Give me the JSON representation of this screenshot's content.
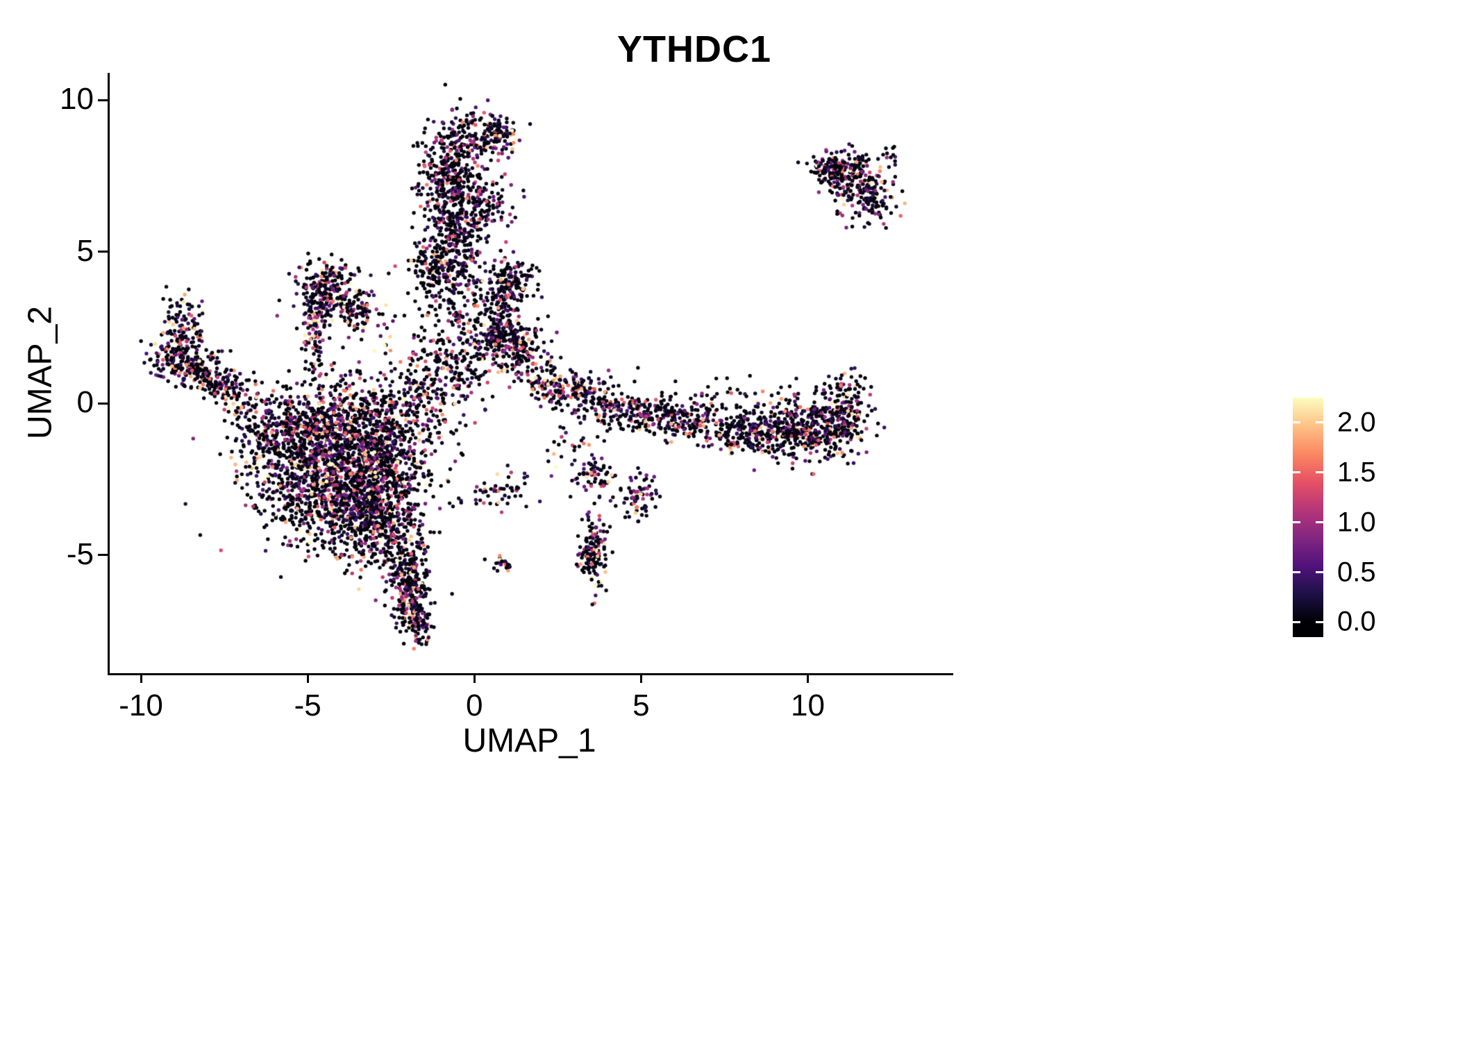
{
  "chart_data": {
    "type": "scatter",
    "title": "YTHDC1",
    "xlabel": "UMAP_1",
    "ylabel": "UMAP_2",
    "xlim": [
      -11.0,
      14.3
    ],
    "ylim": [
      -8.9,
      10.9
    ],
    "xticks": [
      -10,
      -5,
      0,
      5,
      10
    ],
    "yticks": [
      -5,
      0,
      5,
      10
    ],
    "grid": false,
    "point_radius": 2.7,
    "expression": {
      "max": 2.25,
      "zero_fraction": 0.35
    },
    "legend": {
      "position": "right",
      "ticks": [
        0.0,
        0.5,
        1.0,
        1.5,
        2.0
      ],
      "range": [
        -0.15,
        2.25
      ]
    },
    "colormap": [
      {
        "t": 0.0,
        "color": "#000004"
      },
      {
        "t": 0.125,
        "color": "#1D1147"
      },
      {
        "t": 0.25,
        "color": "#51127C"
      },
      {
        "t": 0.375,
        "color": "#822681"
      },
      {
        "t": 0.5,
        "color": "#B63679"
      },
      {
        "t": 0.625,
        "color": "#E65164"
      },
      {
        "t": 0.75,
        "color": "#FB8861"
      },
      {
        "t": 0.875,
        "color": "#FEC287"
      },
      {
        "t": 1.0,
        "color": "#FCFDBF"
      }
    ],
    "clusters": [
      {
        "name": "main-blob-core",
        "cx": -4.3,
        "cy": -2.2,
        "sx": 1.25,
        "sy": 1.15,
        "n": 1200,
        "hot": 1.1
      },
      {
        "name": "main-blob-lower",
        "cx": -3.2,
        "cy": -3.4,
        "sx": 0.85,
        "sy": 0.85,
        "n": 500,
        "hot": 1.1
      },
      {
        "name": "main-blob-left",
        "cx": -5.3,
        "cy": -1.0,
        "sx": 0.85,
        "sy": 0.65,
        "n": 350
      },
      {
        "name": "main-blob-upper",
        "cx": -3.6,
        "cy": -0.5,
        "sx": 1.15,
        "sy": 0.75,
        "n": 350
      },
      {
        "name": "main-blob-right",
        "cx": -2.6,
        "cy": -1.6,
        "sx": 0.65,
        "sy": 0.85,
        "n": 200
      },
      {
        "name": "main-blob-tail",
        "cx": -2.9,
        "cy": -4.4,
        "sx": 0.5,
        "sy": 0.6,
        "n": 150
      },
      {
        "name": "blob-left-edge",
        "cx": -5.6,
        "cy": -3.3,
        "sx": 0.55,
        "sy": 0.5,
        "n": 80
      },
      {
        "name": "south-tail-upper",
        "cx": -2.15,
        "cy": -5.3,
        "sx": 0.35,
        "sy": 0.5,
        "n": 120
      },
      {
        "name": "south-tail-mid",
        "cx": -1.9,
        "cy": -6.3,
        "sx": 0.3,
        "sy": 0.55,
        "n": 160
      },
      {
        "name": "south-tail-tip",
        "cx": -1.8,
        "cy": -7.2,
        "sx": 0.25,
        "sy": 0.35,
        "n": 80
      },
      {
        "name": "center-sparse",
        "cx": -1.5,
        "cy": 0.3,
        "sx": 0.9,
        "sy": 0.7,
        "n": 170
      },
      {
        "name": "center-sparse-up",
        "cx": -0.8,
        "cy": 1.3,
        "sx": 0.8,
        "sy": 0.6,
        "n": 130
      },
      {
        "name": "column-mid",
        "cx": -0.6,
        "cy": 5.8,
        "sx": 0.5,
        "sy": 1.0,
        "n": 300,
        "hot": 0.85
      },
      {
        "name": "column-upper",
        "cx": -0.85,
        "cy": 7.3,
        "sx": 0.45,
        "sy": 0.8,
        "n": 220,
        "hot": 0.85
      },
      {
        "name": "column-top",
        "cx": -0.3,
        "cy": 8.6,
        "sx": 0.5,
        "sy": 0.5,
        "n": 150,
        "hot": 0.85
      },
      {
        "name": "top-knob",
        "cx": 0.65,
        "cy": 8.95,
        "sx": 0.28,
        "sy": 0.33,
        "n": 110,
        "hot": 1.2
      },
      {
        "name": "column-base",
        "cx": -1.2,
        "cy": 4.6,
        "sx": 0.5,
        "sy": 0.5,
        "n": 120
      },
      {
        "name": "column-low-sparse",
        "cx": -0.8,
        "cy": 3.1,
        "sx": 0.6,
        "sy": 0.9,
        "n": 150,
        "hot": 0.85
      },
      {
        "name": "column-right",
        "cx": 0.3,
        "cy": 6.6,
        "sx": 0.4,
        "sy": 0.6,
        "n": 100,
        "hot": 0.85
      },
      {
        "name": "midright-band",
        "cx": 0.9,
        "cy": 2.0,
        "sx": 0.5,
        "sy": 0.4,
        "n": 230
      },
      {
        "name": "midright-upper",
        "cx": 1.0,
        "cy": 3.95,
        "sx": 0.38,
        "sy": 0.45,
        "n": 170
      },
      {
        "name": "midright-sparse",
        "cx": 0.6,
        "cy": 2.95,
        "sx": 0.4,
        "sy": 0.5,
        "n": 80
      },
      {
        "name": "triangle-top",
        "cx": -4.5,
        "cy": 3.9,
        "sx": 0.45,
        "sy": 0.42,
        "n": 150
      },
      {
        "name": "triangle-mid",
        "cx": -4.2,
        "cy": 3.2,
        "sx": 0.6,
        "sy": 0.4,
        "n": 120
      },
      {
        "name": "triangle-trail",
        "cx": -3.4,
        "cy": 2.9,
        "sx": 0.5,
        "sy": 0.3,
        "n": 60
      },
      {
        "name": "triangle-stem",
        "cx": -4.85,
        "cy": 2.1,
        "sx": 0.17,
        "sy": 0.75,
        "n": 80
      },
      {
        "name": "west-arm-outer",
        "cx": -9.0,
        "cy": 1.5,
        "sx": 0.4,
        "sy": 0.4,
        "n": 140
      },
      {
        "name": "west-arm-mid",
        "cx": -8.3,
        "cy": 1.0,
        "sx": 0.4,
        "sy": 0.35,
        "n": 110
      },
      {
        "name": "west-arm-inner",
        "cx": -7.5,
        "cy": 0.5,
        "sx": 0.4,
        "sy": 0.3,
        "n": 90
      },
      {
        "name": "west-arm-hook",
        "cx": -8.8,
        "cy": 2.6,
        "sx": 0.3,
        "sy": 0.5,
        "n": 90
      },
      {
        "name": "west-arm-join",
        "cx": -6.7,
        "cy": -0.1,
        "sx": 0.5,
        "sy": 0.4,
        "n": 60
      },
      {
        "name": "east-band-1",
        "cx": 2.4,
        "cy": 0.65,
        "sx": 0.45,
        "sy": 0.3,
        "n": 70
      },
      {
        "name": "east-band-2",
        "cx": 3.1,
        "cy": 0.35,
        "sx": 0.55,
        "sy": 0.35,
        "n": 120
      },
      {
        "name": "east-band-3",
        "cx": 4.2,
        "cy": -0.2,
        "sx": 0.6,
        "sy": 0.3,
        "n": 110
      },
      {
        "name": "east-band-4",
        "cx": 5.3,
        "cy": -0.4,
        "sx": 0.6,
        "sy": 0.3,
        "n": 110
      },
      {
        "name": "east-band-5",
        "cx": 6.5,
        "cy": -0.6,
        "sx": 0.7,
        "sy": 0.3,
        "n": 120
      },
      {
        "name": "east-band-6",
        "cx": 7.8,
        "cy": -0.85,
        "sx": 0.7,
        "sy": 0.35,
        "n": 150
      },
      {
        "name": "east-band-7",
        "cx": 9.0,
        "cy": -0.95,
        "sx": 0.7,
        "sy": 0.4,
        "n": 200
      },
      {
        "name": "east-band-8",
        "cx": 10.2,
        "cy": -0.85,
        "sx": 0.6,
        "sy": 0.5,
        "n": 250
      },
      {
        "name": "east-band-tip",
        "cx": 11.05,
        "cy": -0.35,
        "sx": 0.35,
        "sy": 0.55,
        "n": 180
      },
      {
        "name": "east-band-upper",
        "cx": 8.6,
        "cy": 0.3,
        "sx": 1.4,
        "sy": 0.35,
        "n": 60
      },
      {
        "name": "northeast-core",
        "cx": 11.2,
        "cy": 7.5,
        "sx": 0.5,
        "sy": 0.4,
        "n": 180
      },
      {
        "name": "northeast-lower",
        "cx": 11.75,
        "cy": 6.8,
        "sx": 0.4,
        "sy": 0.5,
        "n": 120
      },
      {
        "name": "northeast-left",
        "cx": 10.6,
        "cy": 7.8,
        "sx": 0.3,
        "sy": 0.25,
        "n": 60
      },
      {
        "name": "northeast-outlier",
        "cx": 12.5,
        "cy": 8.3,
        "sx": 0.12,
        "sy": 0.12,
        "n": 8
      },
      {
        "name": "south-drip",
        "cx": 3.5,
        "cy": -4.9,
        "sx": 0.25,
        "sy": 0.65,
        "n": 140,
        "hot": 1.1
      },
      {
        "name": "south-spot-right",
        "cx": 4.9,
        "cy": -3.0,
        "sx": 0.25,
        "sy": 0.4,
        "n": 70
      },
      {
        "name": "south-spot-mid",
        "cx": 3.6,
        "cy": -2.4,
        "sx": 0.3,
        "sy": 0.3,
        "n": 60
      },
      {
        "name": "south-diagonal",
        "cx": 0.85,
        "cy": -2.9,
        "sx": 0.5,
        "sy": 0.3,
        "n": 50
      },
      {
        "name": "south-dot",
        "cx": 0.75,
        "cy": -5.3,
        "sx": 0.14,
        "sy": 0.14,
        "n": 22
      },
      {
        "name": "south-sparse",
        "cx": 2.9,
        "cy": -1.5,
        "sx": 0.5,
        "sy": 0.5,
        "n": 30
      },
      {
        "name": "center-east",
        "cx": 1.6,
        "cy": 1.2,
        "sx": 0.5,
        "sy": 0.45,
        "n": 60
      }
    ]
  }
}
